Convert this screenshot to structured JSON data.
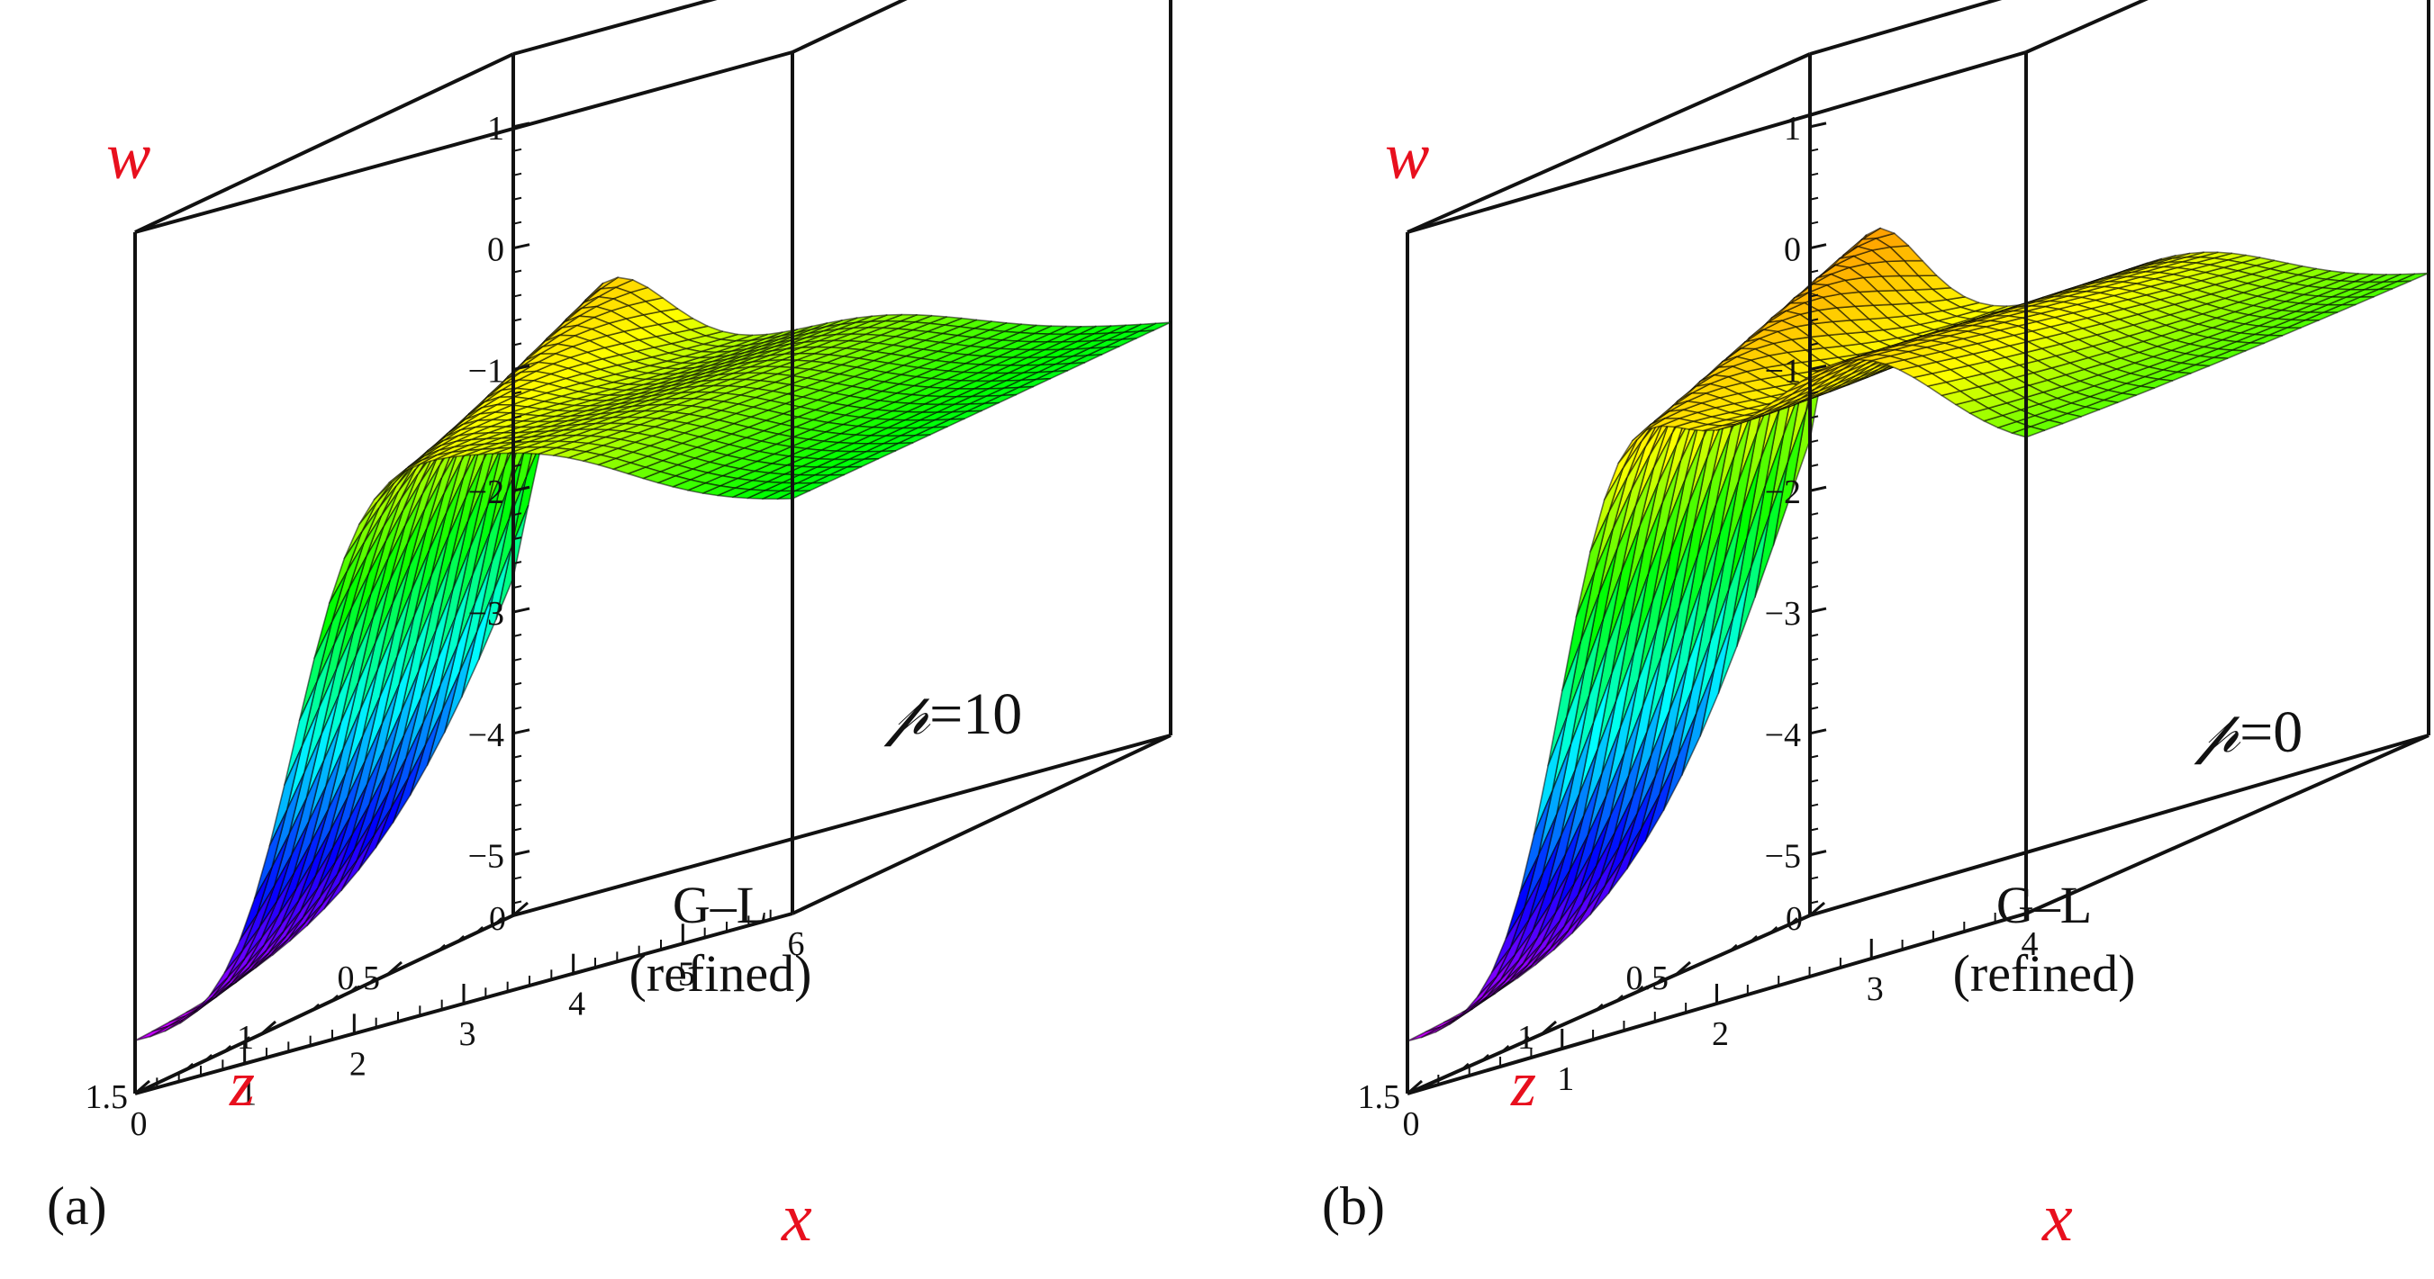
{
  "figure": {
    "panels_count": 2
  },
  "chart_data": [
    {
      "type": "surface3d",
      "panel_label": "(a)",
      "axis_labels": {
        "w": "w",
        "z": "z",
        "x": "x"
      },
      "param_symbol": "𝓅",
      "param_text": "=10",
      "annotation_line1": "G–L",
      "annotation_line2": "(refined)",
      "w_ticks": [
        "1",
        "0",
        "−1",
        "−2",
        "−3",
        "−4",
        "−5"
      ],
      "w_tick_values": [
        1,
        0,
        -1,
        -2,
        -3,
        -4,
        -5
      ],
      "z_ticks": [
        "0",
        "0.5",
        "1",
        "1.5"
      ],
      "z_tick_values": [
        0,
        0.5,
        1,
        1.5
      ],
      "x_ticks": [
        "0",
        "1",
        "2",
        "3",
        "4",
        "5",
        "6"
      ],
      "x_tick_values": [
        0,
        1,
        2,
        3,
        4,
        5,
        6
      ],
      "xlim": [
        0,
        6
      ],
      "zlim": [
        0,
        1.5
      ],
      "wlim": [
        -5.5,
        1.5
      ],
      "colormap": [
        "#ff00ff",
        "#0000ff",
        "#00ffff",
        "#00ff00",
        "#ffff00",
        "#ff8800",
        "#ff0000"
      ]
    },
    {
      "type": "surface3d",
      "panel_label": "(b)",
      "axis_labels": {
        "w": "w",
        "z": "z",
        "x": "x"
      },
      "param_symbol": "𝓅",
      "param_text": "=0",
      "annotation_line1": "G–L",
      "annotation_line2": "(refined)",
      "w_ticks": [
        "1",
        "0",
        "−1",
        "−2",
        "−3",
        "−4",
        "−5"
      ],
      "w_tick_values": [
        1,
        0,
        -1,
        -2,
        -3,
        -4,
        -5
      ],
      "z_ticks": [
        "0",
        "0.5",
        "1",
        "1.5"
      ],
      "z_tick_values": [
        0,
        0.5,
        1,
        1.5
      ],
      "x_ticks": [
        "0",
        "1",
        "2",
        "3",
        "4"
      ],
      "x_tick_values": [
        0,
        1,
        2,
        3,
        4
      ],
      "xlim": [
        0,
        4
      ],
      "zlim": [
        0,
        1.5
      ],
      "wlim": [
        -5.5,
        1.5
      ],
      "colormap": [
        "#ff00ff",
        "#0000ff",
        "#00ffff",
        "#00ff00",
        "#ffff00",
        "#ff8800",
        "#ff0000"
      ]
    }
  ]
}
